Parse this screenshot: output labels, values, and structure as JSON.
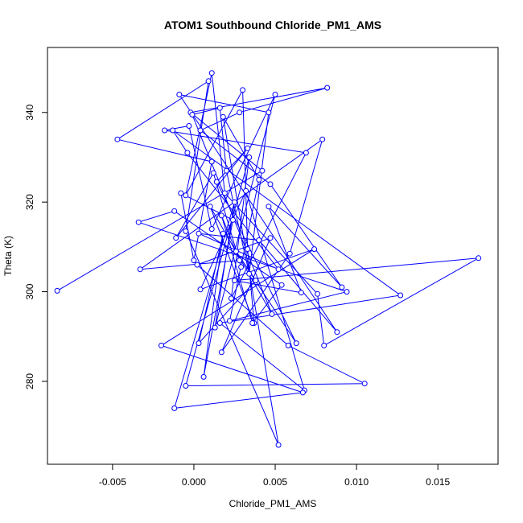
{
  "chart_data": {
    "type": "scatter",
    "title": "ATOM1 Southbound Chloride_PM1_AMS",
    "xlabel": "Chloride_PM1_AMS",
    "ylabel": "Theta (K)",
    "xlim": [
      -0.009,
      0.0187
    ],
    "ylim": [
      261.5,
      354.5
    ],
    "xticks": [
      -0.005,
      0.0,
      0.005,
      0.01,
      0.015
    ],
    "xtick_labels": [
      "-0.005",
      "0.000",
      "0.005",
      "0.010",
      "0.015"
    ],
    "yticks": [
      280,
      300,
      320,
      340
    ],
    "ytick_labels": [
      "280",
      "300",
      "320",
      "340"
    ],
    "grid": false,
    "legend": "none",
    "series_color": "#0000ff",
    "series": [
      {
        "markers": "open-circle",
        "connected": true,
        "points": [
          [
            -0.0084,
            300.2
          ],
          [
            0.0042,
            327.0
          ],
          [
            -0.0002,
            340.0
          ],
          [
            0.0082,
            345.5
          ],
          [
            0.0028,
            340.0
          ],
          [
            0.0004,
            336.0
          ],
          [
            0.0047,
            324.0
          ],
          [
            0.0091,
            301.0
          ],
          [
            0.0046,
            319.0
          ],
          [
            0.0066,
            299.8
          ],
          [
            0.0025,
            302.5
          ],
          [
            0.0175,
            307.5
          ],
          [
            0.008,
            288.0
          ],
          [
            0.0076,
            299.5
          ],
          [
            0.0019,
            322.0
          ],
          [
            0.0011,
            348.8
          ],
          [
            -0.0005,
            321.5
          ],
          [
            0.003,
            345.0
          ],
          [
            0.0033,
            309.5
          ],
          [
            0.0037,
            293.0
          ],
          [
            0.001,
            319.0
          ],
          [
            0.0048,
            295.0
          ],
          [
            -0.0001,
            339.5
          ],
          [
            0.0016,
            341.0
          ],
          [
            0.002,
            327.0
          ],
          [
            0.0034,
            304.0
          ],
          [
            0.0046,
            340.0
          ],
          [
            -0.0009,
            344.0
          ],
          [
            0.0088,
            291.0
          ],
          [
            0.004,
            311.5
          ],
          [
            0.0003,
            313.0
          ],
          [
            0.0052,
            305.0
          ],
          [
            -0.0004,
            331.0
          ],
          [
            -0.0013,
            336.0
          ],
          [
            0.0127,
            299.2
          ],
          [
            0.0016,
            293.0
          ],
          [
            0.0068,
            278.0
          ],
          [
            0.0032,
            322.5
          ],
          [
            0.0004,
            300.5
          ],
          [
            0.0074,
            309.5
          ],
          [
            -0.002,
            288.0
          ],
          [
            0.0067,
            277.5
          ],
          [
            -0.0012,
            274.0
          ],
          [
            0.0025,
            320.0
          ],
          [
            0.0013,
            292.0
          ],
          [
            0.005,
            344.0
          ],
          [
            0.0011,
            314.0
          ],
          [
            -0.0003,
            337.0
          ],
          [
            -0.0018,
            336.0
          ],
          [
            0.0069,
            331.0
          ],
          [
            0.0023,
            298.5
          ],
          [
            0.0034,
            330.0
          ],
          [
            -0.0005,
            279.0
          ],
          [
            0.0105,
            279.5
          ],
          [
            0.0058,
            288.0
          ],
          [
            0.0002,
            306.0
          ],
          [
            0.0047,
            312.0
          ],
          [
            0.0017,
            286.5
          ],
          [
            0.0059,
            308.5
          ],
          [
            0.0079,
            334.0
          ],
          [
            -0.0033,
            305.0
          ],
          [
            0.0028,
            307.0
          ],
          [
            0.0017,
            317.0
          ],
          [
            0.0036,
            293.0
          ],
          [
            0.0054,
            301.5
          ],
          [
            -0.0012,
            318.0
          ],
          [
            -0.0034,
            315.5
          ],
          [
            0.0094,
            300.0
          ],
          [
            0.0022,
            293.5
          ],
          [
            0.004,
            325.0
          ],
          [
            0.0018,
            339.0
          ],
          [
            0.0052,
            265.8
          ],
          [
            -0.0005,
            313.5
          ],
          [
            0.0009,
            347.0
          ],
          [
            -0.0047,
            334.0
          ],
          [
            0.0011,
            329.0
          ],
          [
            0.0,
            307.0
          ],
          [
            -0.0008,
            322.0
          ],
          [
            0.0024,
            316.0
          ],
          [
            0.0006,
            281.0
          ],
          [
            0.0018,
            313.0
          ],
          [
            0.0003,
            288.5
          ],
          [
            0.0038,
            302.5
          ],
          [
            0.0026,
            309.0
          ],
          [
            0.0063,
            288.5
          ],
          [
            0.0014,
            324.5
          ],
          [
            0.0033,
            332.0
          ],
          [
            -0.0011,
            312.0
          ],
          [
            0.0012,
            326.5
          ],
          [
            0.0029,
            305.5
          ]
        ]
      }
    ]
  }
}
